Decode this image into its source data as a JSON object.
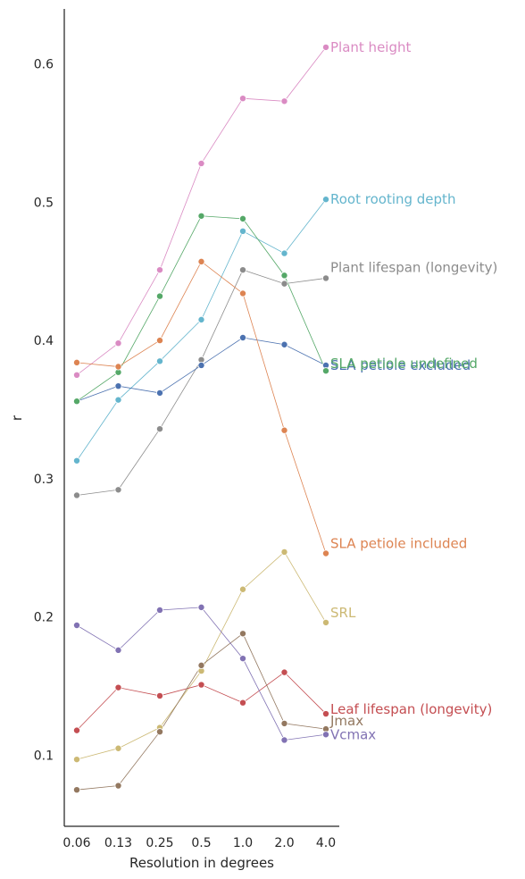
{
  "chart_data": {
    "type": "line",
    "xlabel": "Resolution in degrees",
    "ylabel": "r",
    "categories": [
      "0.06",
      "0.13",
      "0.25",
      "0.5",
      "1.0",
      "2.0",
      "4.0"
    ],
    "y_ticks": [
      "0.1",
      "0.2",
      "0.3",
      "0.4",
      "0.5",
      "0.6"
    ],
    "ylim": [
      0.05,
      0.64
    ],
    "grid": false,
    "legend": "direct labels at line ends",
    "series": [
      {
        "name": "Plant height",
        "color": "#da8bc3",
        "values": [
          0.375,
          0.398,
          0.451,
          0.528,
          0.575,
          0.573,
          0.612
        ]
      },
      {
        "name": "Root rooting depth",
        "color": "#64b5cd",
        "values": [
          0.313,
          0.357,
          0.385,
          0.415,
          0.479,
          0.463,
          0.502
        ]
      },
      {
        "name": "Plant lifespan (longevity)",
        "color": "#8c8c8c",
        "values": [
          0.288,
          0.292,
          0.336,
          0.386,
          0.451,
          0.441,
          0.445
        ]
      },
      {
        "name": "SLA petiole excluded",
        "color": "#4c72b0",
        "values": [
          0.356,
          0.367,
          0.362,
          0.382,
          0.402,
          0.397,
          0.382
        ]
      },
      {
        "name": "SLA petiole undefined",
        "color": "#55a868",
        "values": [
          0.356,
          0.377,
          0.432,
          0.49,
          0.488,
          0.447,
          0.378
        ]
      },
      {
        "name": "SLA petiole included",
        "color": "#dd8452",
        "values": [
          0.384,
          0.381,
          0.4,
          0.457,
          0.434,
          0.335,
          0.246
        ]
      },
      {
        "name": "SRL",
        "color": "#ccb974",
        "values": [
          0.097,
          0.105,
          0.12,
          0.161,
          0.22,
          0.247,
          0.196
        ]
      },
      {
        "name": "Leaf lifespan (longevity)",
        "color": "#c44e52",
        "values": [
          0.118,
          0.149,
          0.143,
          0.151,
          0.138,
          0.16,
          0.13
        ]
      },
      {
        "name": "Jmax",
        "color": "#937860",
        "values": [
          0.075,
          0.078,
          0.117,
          0.165,
          0.188,
          0.123,
          0.119
        ]
      },
      {
        "name": "Vcmax",
        "color": "#8172b3",
        "values": [
          0.194,
          0.176,
          0.205,
          0.207,
          0.17,
          0.111,
          0.115
        ]
      }
    ]
  }
}
